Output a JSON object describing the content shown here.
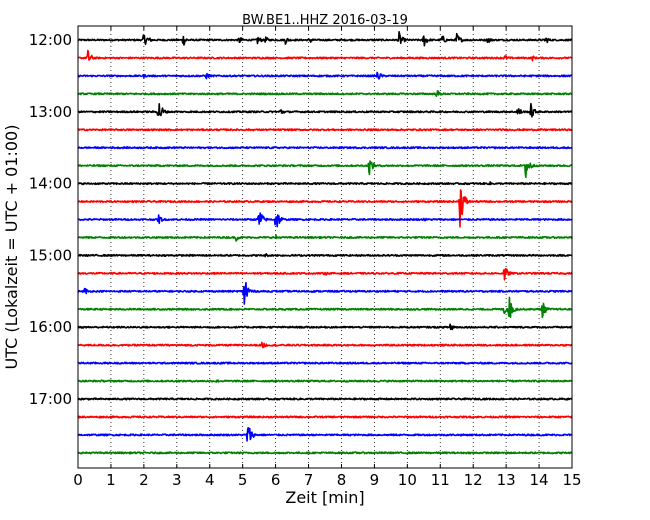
{
  "chart_data": {
    "type": "line",
    "variant": "dayplot-seismogram",
    "title": "BW.BE1..HHZ 2016-03-19",
    "xlabel": "Zeit  [min]",
    "ylabel": "UTC (Lokalzeit = UTC + 01:00)",
    "xlim": [
      0,
      15
    ],
    "x_ticks": [
      0,
      1,
      2,
      3,
      4,
      5,
      6,
      7,
      8,
      9,
      10,
      11,
      12,
      13,
      14,
      15
    ],
    "y_tick_labels": [
      "12:00",
      "13:00",
      "14:00",
      "15:00",
      "16:00",
      "17:00"
    ],
    "y_tick_rows": [
      0,
      4,
      8,
      12,
      16,
      20
    ],
    "grid": "vertical dotted at every minute",
    "row_interval_minutes": 15,
    "colors": [
      "#000000",
      "#ff0000",
      "#0000ff",
      "#008000"
    ],
    "series": [
      {
        "start": "12:00",
        "color": "#000000",
        "bursts": [
          {
            "x": 2.0,
            "amp": 0.5
          },
          {
            "x": 2.1,
            "amp": 0.35
          },
          {
            "x": 3.2,
            "amp": 0.45
          },
          {
            "x": 4.9,
            "amp": 0.3
          },
          {
            "x": 5.45,
            "amp": 0.35
          },
          {
            "x": 5.7,
            "amp": 0.25
          },
          {
            "x": 6.3,
            "amp": 0.3
          },
          {
            "x": 7.05,
            "amp": 0.25
          },
          {
            "x": 9.75,
            "amp": 0.6
          },
          {
            "x": 10.5,
            "amp": 0.55
          },
          {
            "x": 11.05,
            "amp": 0.4
          },
          {
            "x": 11.5,
            "amp": 0.55
          },
          {
            "x": 12.45,
            "amp": 0.25
          },
          {
            "x": 14.2,
            "amp": 0.3
          }
        ]
      },
      {
        "start": "12:15",
        "color": "#ff0000",
        "bursts": [
          {
            "x": 0.3,
            "amp": 0.6
          },
          {
            "x": 12.95,
            "amp": 0.25
          },
          {
            "x": 13.8,
            "amp": 0.2
          }
        ]
      },
      {
        "start": "12:30",
        "color": "#0000ff",
        "bursts": [
          {
            "x": 2.0,
            "amp": 0.15
          },
          {
            "x": 3.9,
            "amp": 0.25
          },
          {
            "x": 9.1,
            "amp": 0.4
          }
        ]
      },
      {
        "start": "12:45",
        "color": "#008000",
        "bursts": [
          {
            "x": 10.9,
            "amp": 0.3
          }
        ]
      },
      {
        "start": "13:00",
        "color": "#000000",
        "bursts": [
          {
            "x": 2.45,
            "amp": 1.0
          },
          {
            "x": 6.15,
            "amp": 0.3
          },
          {
            "x": 13.35,
            "amp": 0.45
          },
          {
            "x": 13.75,
            "amp": 0.6
          }
        ]
      },
      {
        "start": "13:15",
        "color": "#ff0000",
        "bursts": []
      },
      {
        "start": "13:30",
        "color": "#0000ff",
        "bursts": []
      },
      {
        "start": "13:45",
        "color": "#008000",
        "bursts": [
          {
            "x": 8.85,
            "amp": 0.65
          },
          {
            "x": 13.6,
            "amp": 1.2
          }
        ]
      },
      {
        "start": "14:00",
        "color": "#000000",
        "bursts": [
          {
            "x": 12.5,
            "amp": 0.15
          }
        ]
      },
      {
        "start": "14:15",
        "color": "#ff0000",
        "bursts": [
          {
            "x": 11.6,
            "amp": 1.9
          }
        ]
      },
      {
        "start": "14:30",
        "color": "#0000ff",
        "bursts": [
          {
            "x": 2.45,
            "amp": 0.35
          },
          {
            "x": 5.5,
            "amp": 0.9
          },
          {
            "x": 6.0,
            "amp": 1.0
          },
          {
            "x": 10.5,
            "amp": 0.15
          }
        ]
      },
      {
        "start": "14:45",
        "color": "#008000",
        "bursts": [
          {
            "x": 4.8,
            "amp": 0.25
          },
          {
            "x": 6.0,
            "amp": 0.2
          }
        ]
      },
      {
        "start": "15:00",
        "color": "#000000",
        "bursts": [
          {
            "x": 5.7,
            "amp": 0.15
          }
        ]
      },
      {
        "start": "15:15",
        "color": "#ff0000",
        "bursts": [
          {
            "x": 7.5,
            "amp": 0.15
          },
          {
            "x": 12.95,
            "amp": 0.6
          }
        ]
      },
      {
        "start": "15:30",
        "color": "#0000ff",
        "bursts": [
          {
            "x": 0.2,
            "amp": 0.3
          },
          {
            "x": 5.05,
            "amp": 1.5
          }
        ]
      },
      {
        "start": "15:45",
        "color": "#008000",
        "bursts": [
          {
            "x": 12.95,
            "amp": 0.45
          },
          {
            "x": 13.1,
            "amp": 0.9
          },
          {
            "x": 14.1,
            "amp": 0.6
          }
        ]
      },
      {
        "start": "16:00",
        "color": "#000000",
        "bursts": [
          {
            "x": 11.3,
            "amp": 0.45
          }
        ]
      },
      {
        "start": "16:15",
        "color": "#ff0000",
        "bursts": [
          {
            "x": 5.6,
            "amp": 0.3
          }
        ]
      },
      {
        "start": "16:30",
        "color": "#0000ff",
        "bursts": []
      },
      {
        "start": "16:45",
        "color": "#008000",
        "bursts": [
          {
            "x": 4.2,
            "amp": 0.15
          }
        ]
      },
      {
        "start": "17:00",
        "color": "#000000",
        "bursts": []
      },
      {
        "start": "17:15",
        "color": "#ff0000",
        "bursts": []
      },
      {
        "start": "17:30",
        "color": "#0000ff",
        "bursts": [
          {
            "x": 5.15,
            "amp": 1.0
          }
        ]
      },
      {
        "start": "17:45",
        "color": "#008000",
        "bursts": []
      }
    ]
  }
}
